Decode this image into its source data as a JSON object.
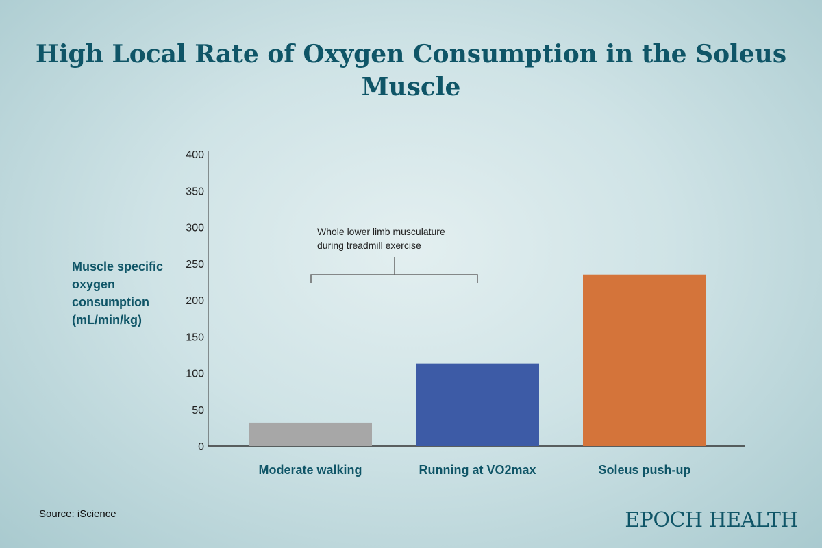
{
  "chart_data": {
    "type": "bar",
    "title": "High Local Rate of Oxygen Consumption in the Soleus Muscle",
    "ylabel": "Muscle specific oxygen consumption (mL/min/kg)",
    "xlabel": "",
    "categories": [
      "Moderate walking",
      "Running at VO2max",
      "Soleus push-up"
    ],
    "values": [
      32,
      113,
      235
    ],
    "colors": [
      "#a7a7a7",
      "#3d5ba6",
      "#d4743a"
    ],
    "ylim": [
      0,
      400
    ],
    "yticks": [
      0,
      50,
      100,
      150,
      200,
      250,
      300,
      350,
      400
    ],
    "grid": false,
    "annotation": {
      "text_lines": [
        "Whole lower limb musculature",
        "during treadmill exercise"
      ],
      "spans": [
        "Moderate walking",
        "Running at VO2max"
      ]
    }
  },
  "source": "Source: iScience",
  "logo": "EPOCH HEALTH"
}
